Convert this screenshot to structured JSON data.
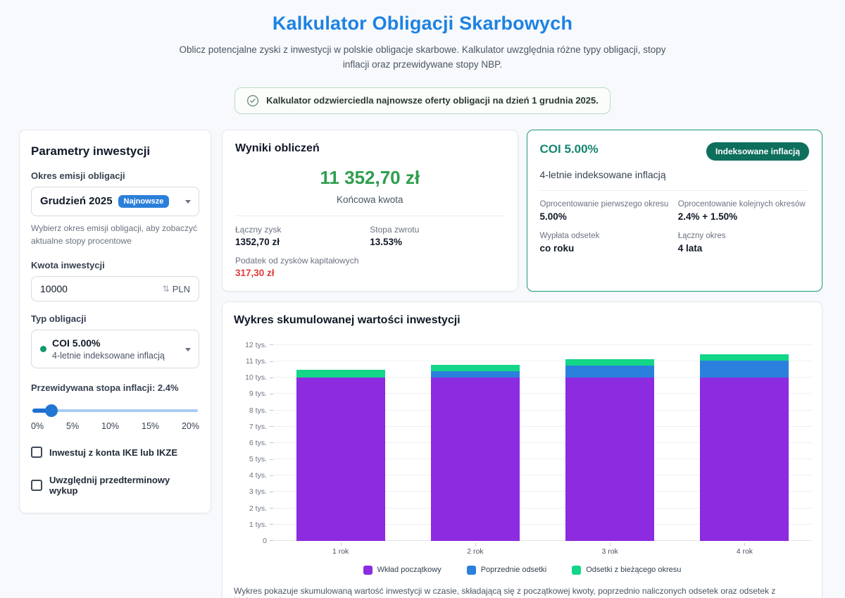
{
  "page": {
    "title": "Kalkulator Obligacji Skarbowych",
    "subtitle": "Oblicz potencjalne zyski z inwestycji w polskie obligacje skarbowe. Kalkulator uwzględnia różne typy obligacji, stopy inflacji oraz przewidywane stopy NBP.",
    "banner_text": "Kalkulator odzwierciedla najnowsze oferty obligacji na dzień 1 grudnia 2025."
  },
  "params": {
    "heading": "Parametry inwestycji",
    "issue_period": {
      "label": "Okres emisji obligacji",
      "value": "Grudzień 2025",
      "badge": "Najnowsze",
      "help": "Wybierz okres emisji obligacji, aby zobaczyć aktualne stopy procentowe"
    },
    "amount": {
      "label": "Kwota inwestycji",
      "value": "10000",
      "unit": "PLN",
      "stepper": "⇅"
    },
    "bond_type": {
      "label": "Typ obligacji",
      "value": "COI 5.00%",
      "subtitle": "4-letnie indeksowane inflacją"
    },
    "inflation": {
      "label": "Przewidywana stopa inflacji: 2.4%",
      "value_percent_of_track": 12,
      "ticks": [
        "0%",
        "5%",
        "10%",
        "15%",
        "20%"
      ]
    },
    "checkboxes": [
      {
        "label": "Inwestuj z konta IKE lub IKZE",
        "checked": false
      },
      {
        "label": "Uwzględnij przedterminowy wykup",
        "checked": false
      }
    ]
  },
  "results": {
    "heading": "Wyniki obliczeń",
    "final_amount": "11 352,70 zł",
    "final_label": "Końcowa kwota",
    "stats": [
      {
        "label": "Łączny zysk",
        "value": "1352,70 zł"
      },
      {
        "label": "Stopa zwrotu",
        "value": "13.53%"
      }
    ],
    "tax": {
      "label": "Podatek od zysków kapitałowych",
      "value": "317,30 zł"
    }
  },
  "bond_card": {
    "title": "COI 5.00%",
    "badge": "Indeksowane inflacją",
    "subtitle": "4-letnie indeksowane inflacją",
    "details": [
      {
        "label": "Oprocentowanie pierwszego okresu",
        "value": "5.00%"
      },
      {
        "label": "Oprocentowanie kolejnych okresów",
        "value": "2.4% + 1.50%"
      },
      {
        "label": "Wypłata odsetek",
        "value": "co roku"
      },
      {
        "label": "Łączny okres",
        "value": "4 lata"
      }
    ]
  },
  "chart": {
    "heading": "Wykres skumulowanej wartości inwestycji",
    "footer": "Wykres pokazuje skumulowaną wartość inwestycji w czasie, składającą się z początkowej kwoty, poprzednio naliczonych odsetek oraz odsetek z bieżącego okresu."
  },
  "chart_data": {
    "type": "bar",
    "stacked": true,
    "title": "Wykres skumulowanej wartości inwestycji",
    "categories": [
      "1 rok",
      "2 rok",
      "3 rok",
      "4 rok"
    ],
    "series": [
      {
        "name": "Wkład początkowy",
        "color": "#8c2be0",
        "values": [
          10000,
          10000,
          10000,
          10000
        ]
      },
      {
        "name": "Poprzednie odsetki",
        "color": "#2b80dd",
        "values": [
          0,
          405,
          721,
          1037
        ]
      },
      {
        "name": "Odsetki z bieżącego okresu",
        "color": "#13d688",
        "values": [
          500,
          390,
          390,
          390
        ]
      }
    ],
    "totals": [
      10500,
      10795,
      11111,
      11427
    ],
    "xlabel": "",
    "ylabel": "",
    "ylim": [
      0,
      12000
    ],
    "ytick_step": 1000,
    "ytick_labels": [
      "0",
      "1 tys.",
      "2 tys.",
      "3 tys.",
      "4 tys.",
      "5 tys.",
      "6 tys.",
      "7 tys.",
      "8 tys.",
      "9 tys.",
      "10 tys.",
      "11 tys.",
      "12 tys."
    ],
    "grid": true,
    "legend_position": "bottom"
  },
  "colors": {
    "title_blue": "#1d82e2",
    "accent_green": "#2e9e4f",
    "danger_red": "#e23b3b",
    "teal": "#12866f",
    "teal_badge": "#0e6f5c",
    "badge_blue": "#2b7fd9",
    "bar_purple": "#8c2be0",
    "bar_blue": "#2b80dd",
    "bar_green": "#13d688",
    "slider_blue": "#2176d2"
  }
}
